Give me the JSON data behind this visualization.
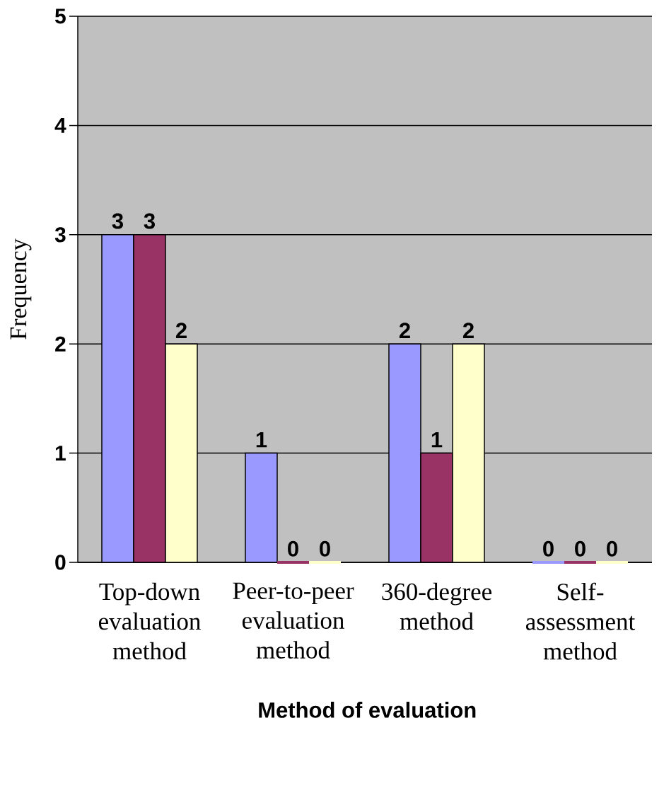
{
  "chart_data": {
    "type": "bar",
    "xlabel": "Method of evaluation",
    "ylabel": "Frequency",
    "categories": [
      "Top-down evaluation method",
      "Peer-to-peer evaluation method",
      "360-degree method",
      "Self-assessment method"
    ],
    "series": [
      {
        "color": "#9999ff",
        "values": [
          3,
          1,
          2,
          0
        ]
      },
      {
        "color": "#993366",
        "values": [
          3,
          0,
          1,
          0
        ]
      },
      {
        "color": "#ffffcc",
        "values": [
          2,
          0,
          2,
          0
        ]
      }
    ],
    "ylim": [
      0,
      5
    ],
    "yticks": [
      0,
      1,
      2,
      3,
      4,
      5
    ],
    "grid": "y",
    "data_labels": true
  }
}
